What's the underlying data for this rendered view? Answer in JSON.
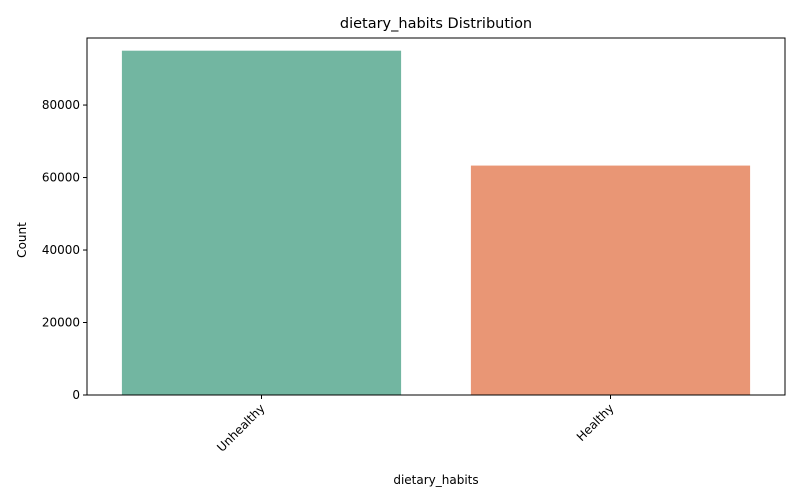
{
  "chart_data": {
    "type": "bar",
    "title": "dietary_habits Distribution",
    "xlabel": "dietary_habits",
    "ylabel": "Count",
    "categories": [
      "Unhealthy",
      "Healthy"
    ],
    "values": [
      95000,
      63300
    ],
    "colors": [
      "#72b6a1",
      "#e99675"
    ],
    "ylim": [
      0,
      98500
    ],
    "yticks": [
      0,
      20000,
      40000,
      60000,
      80000
    ],
    "grid": false,
    "legend": "none"
  }
}
